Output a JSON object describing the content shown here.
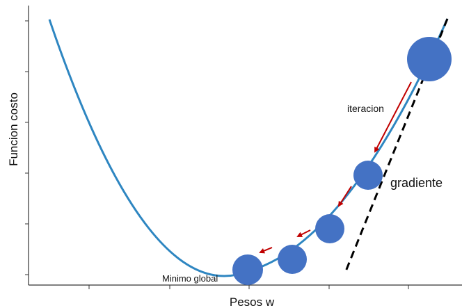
{
  "axes": {
    "y_label": "Funcion costo",
    "x_label": "Pesos w"
  },
  "annotations": {
    "iteration": "iteracion",
    "gradient": "gradiente",
    "global_minimum": "Minimo global"
  },
  "colors": {
    "curve": "#2e86c1",
    "ball": "#4472c4",
    "arrow": "#c00000",
    "tangent": "#000000",
    "axis": "#333333"
  }
}
